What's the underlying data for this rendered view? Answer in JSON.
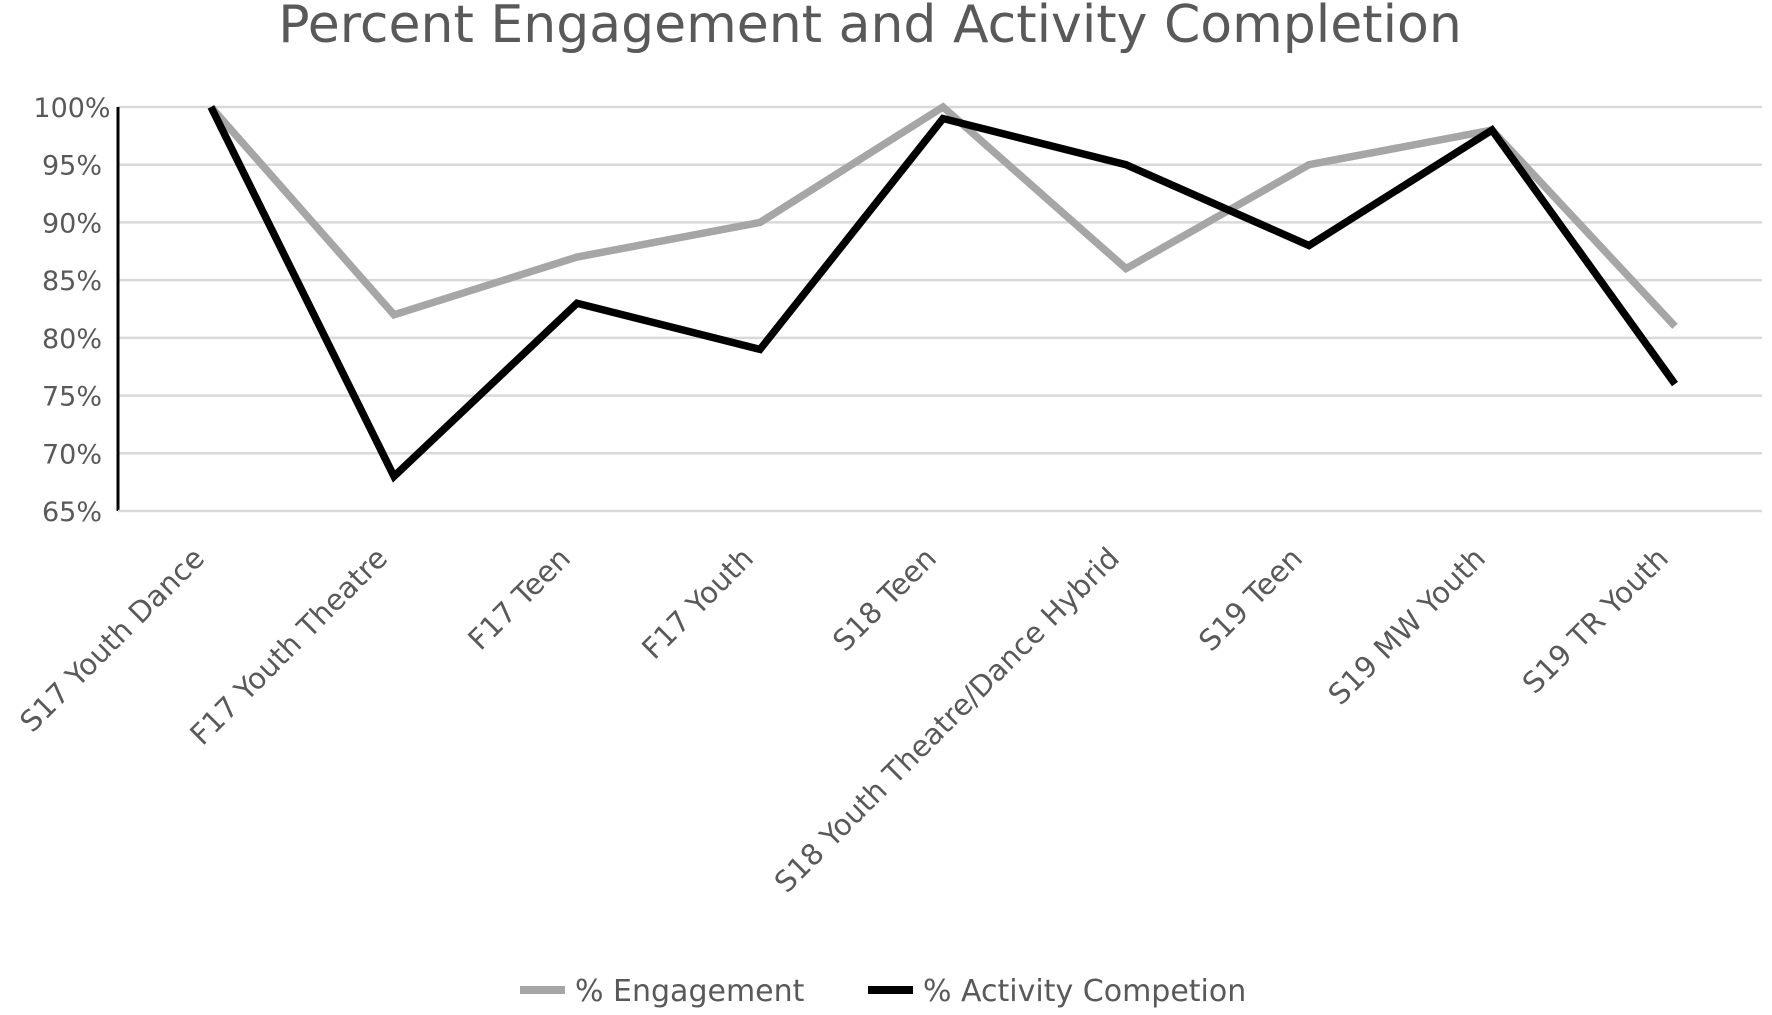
{
  "chart_data": {
    "type": "line",
    "title": "Percent Engagement and Activity Completion",
    "xlabel": "",
    "ylabel": "",
    "ylim": [
      65,
      100
    ],
    "y_ticks": [
      100,
      95,
      90,
      85,
      80,
      75,
      70,
      65
    ],
    "y_tick_labels": [
      "100%",
      "95%",
      "90%",
      "85%",
      "80%",
      "75%",
      "70%",
      "65%"
    ],
    "grid": true,
    "legend_position": "bottom",
    "categories": [
      "S17 Youth Dance",
      "F17 Youth Theatre",
      "F17 Teen",
      "F17 Youth",
      "S18 Teen",
      "S18 Youth Theatre/Dance Hybrid",
      "S19 Teen",
      "S19 MW Youth",
      "S19 TR Youth"
    ],
    "series": [
      {
        "name": "% Engagement",
        "color": "#a6a6a6",
        "values": [
          100,
          82,
          87,
          90,
          100,
          86,
          95,
          98,
          81
        ]
      },
      {
        "name": "% Activity Competion",
        "color": "#000000",
        "values": [
          100,
          68,
          83,
          79,
          99,
          95,
          88,
          98,
          76
        ]
      }
    ]
  }
}
